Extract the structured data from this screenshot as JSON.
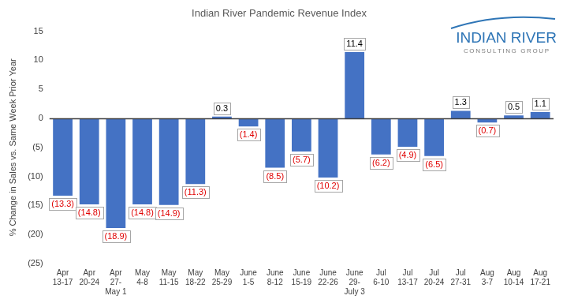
{
  "chart_data": {
    "type": "bar",
    "title": "Indian River Pandemic Revenue Index",
    "y_label": "% Change in Sales vs. Same Week Prior Year",
    "annotations": [
      {
        "text": "INDIAN RIVER"
      },
      {
        "text": "CONSULTING GROUP"
      }
    ],
    "categories": [
      "Apr\n13-17",
      "Apr\n20-24",
      "Apr\n27-\nMay 1",
      "May\n4-8",
      "May\n11-15",
      "May\n18-22",
      "May\n25-29",
      "June\n1-5",
      "June\n8-12",
      "June\n15-19",
      "June\n22-26",
      "June\n29-\nJuly 3",
      "Jul\n6-10",
      "Jul\n13-17",
      "Jul\n20-24",
      "Jul\n27-31",
      "Aug\n3-7",
      "Aug\n10-14",
      "Aug\n17-21"
    ],
    "values": [
      -13.3,
      -14.8,
      -18.9,
      -14.8,
      -14.9,
      -11.3,
      0.3,
      -1.4,
      -8.5,
      -5.7,
      -10.2,
      11.4,
      -6.2,
      -4.9,
      -6.5,
      1.3,
      -0.7,
      0.5,
      1.1
    ],
    "value_labels": [
      "(13.3)",
      "(14.8)",
      "(18.9)",
      "(14.8)",
      "(14.9)",
      "(11.3)",
      "0.3",
      "(1.4)",
      "(8.5)",
      "(5.7)",
      "(10.2)",
      "11.4",
      "(6.2)",
      "(4.9)",
      "(6.5)",
      "1.3",
      "(0.7)",
      "0.5",
      "1.1"
    ],
    "color": "#4472c4",
    "ylim": [
      -25,
      15
    ],
    "yticks": [
      {
        "value": -25,
        "label": "(25)"
      },
      {
        "value": -20,
        "label": "(20)"
      },
      {
        "value": -15,
        "label": "(15)"
      },
      {
        "value": -10,
        "label": "(10)"
      },
      {
        "value": -5,
        "label": "(5)"
      },
      0,
      5,
      10,
      15
    ],
    "grid": false,
    "data_labels": true
  }
}
